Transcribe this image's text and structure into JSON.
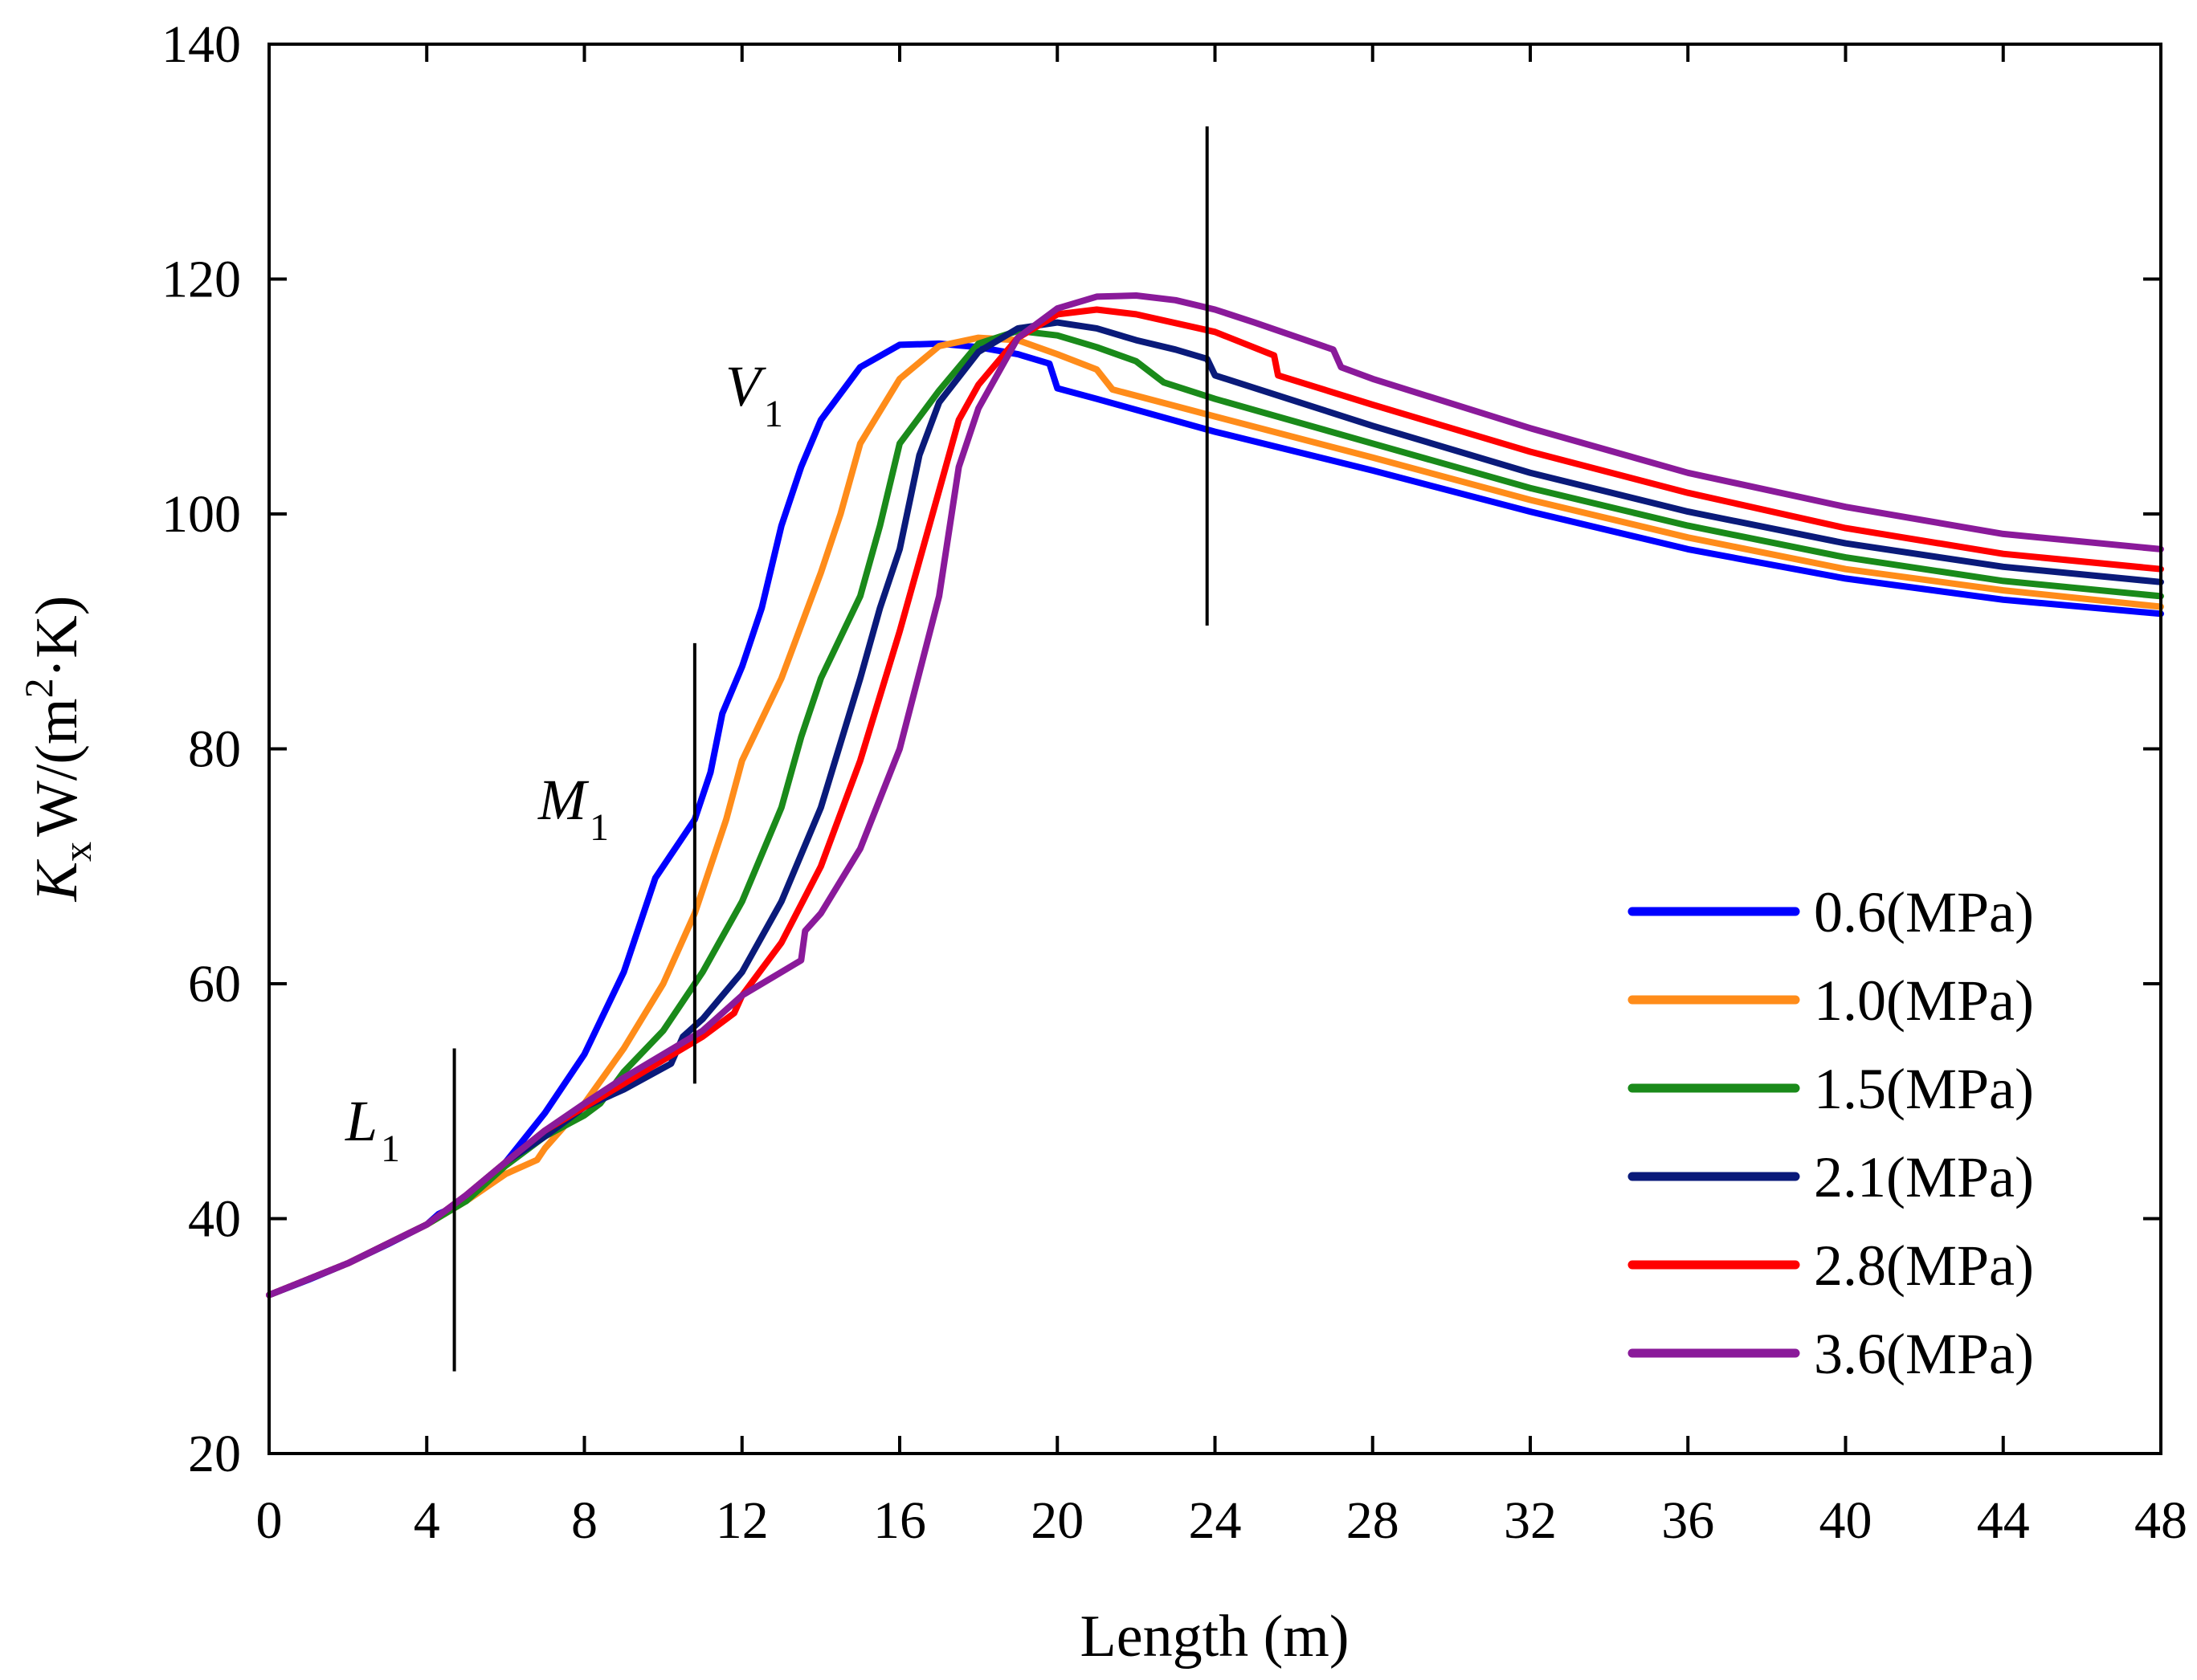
{
  "chart_data": {
    "type": "line",
    "title": "",
    "xlabel": "Length (m)",
    "ylabel": {
      "k": "K",
      "sub": "x",
      "unit": "W/(m",
      "sup": "2",
      "unit_end": "·K)"
    },
    "xlim": [
      0,
      48
    ],
    "ylim": [
      20,
      140
    ],
    "xticks": [
      0,
      4,
      8,
      12,
      16,
      20,
      24,
      28,
      32,
      36,
      40,
      44,
      48
    ],
    "yticks": [
      20,
      40,
      60,
      80,
      100,
      120,
      140
    ],
    "grid": false,
    "legend_position": "lower-right",
    "series": [
      {
        "name": "0.6(MPa)",
        "color": "#0000ff",
        "points": [
          [
            0,
            33.5
          ],
          [
            1,
            34.8
          ],
          [
            2,
            36.2
          ],
          [
            3,
            37.8
          ],
          [
            4,
            39.5
          ],
          [
            4.3,
            40.4
          ],
          [
            5,
            41.5
          ],
          [
            5.5,
            43
          ],
          [
            6,
            44.8
          ],
          [
            7,
            49
          ],
          [
            8,
            54
          ],
          [
            9,
            61
          ],
          [
            9.8,
            69
          ],
          [
            10.2,
            71
          ],
          [
            10.8,
            74
          ],
          [
            11.2,
            78
          ],
          [
            11.5,
            83
          ],
          [
            12,
            87
          ],
          [
            12.5,
            92
          ],
          [
            13,
            99
          ],
          [
            13.5,
            104
          ],
          [
            14,
            108
          ],
          [
            15,
            112.5
          ],
          [
            16,
            114.4
          ],
          [
            17,
            114.5
          ],
          [
            18,
            114.2
          ],
          [
            19,
            113.6
          ],
          [
            19.8,
            112.8
          ],
          [
            20,
            110.7
          ],
          [
            21,
            109.8
          ],
          [
            24,
            107
          ],
          [
            28,
            103.7
          ],
          [
            32,
            100.2
          ],
          [
            36,
            97
          ],
          [
            40,
            94.5
          ],
          [
            44,
            92.7
          ],
          [
            48,
            91.5
          ]
        ]
      },
      {
        "name": "1.0(MPa)",
        "color": "#ff8c1a",
        "points": [
          [
            0,
            33.5
          ],
          [
            2,
            36.2
          ],
          [
            4,
            39.5
          ],
          [
            5,
            41.5
          ],
          [
            6,
            43.8
          ],
          [
            6.8,
            45
          ],
          [
            7,
            46
          ],
          [
            8,
            49.8
          ],
          [
            9,
            54.5
          ],
          [
            10,
            60
          ],
          [
            10.8,
            66
          ],
          [
            11.2,
            70
          ],
          [
            11.6,
            74
          ],
          [
            12,
            79
          ],
          [
            13,
            86
          ],
          [
            14,
            95
          ],
          [
            14.5,
            100
          ],
          [
            15,
            106
          ],
          [
            16,
            111.5
          ],
          [
            17,
            114.3
          ],
          [
            18,
            115
          ],
          [
            19,
            114.8
          ],
          [
            20,
            113.6
          ],
          [
            21,
            112.3
          ],
          [
            21.4,
            110.6
          ],
          [
            24,
            108.3
          ],
          [
            28,
            104.8
          ],
          [
            32,
            101.2
          ],
          [
            36,
            98
          ],
          [
            40,
            95.3
          ],
          [
            44,
            93.5
          ],
          [
            48,
            92.1
          ]
        ]
      },
      {
        "name": "1.5(MPa)",
        "color": "#1a8a1a",
        "points": [
          [
            0,
            33.5
          ],
          [
            2,
            36.2
          ],
          [
            4,
            39.5
          ],
          [
            5,
            41.5
          ],
          [
            6,
            44.5
          ],
          [
            7,
            47
          ],
          [
            8,
            48.8
          ],
          [
            8.4,
            49.8
          ],
          [
            9,
            52.5
          ],
          [
            10,
            56
          ],
          [
            11,
            61
          ],
          [
            12,
            67
          ],
          [
            13,
            75
          ],
          [
            13.5,
            81
          ],
          [
            14,
            86
          ],
          [
            15,
            93
          ],
          [
            15.5,
            99
          ],
          [
            16,
            106
          ],
          [
            17,
            110.5
          ],
          [
            18,
            114.5
          ],
          [
            19,
            115.6
          ],
          [
            20,
            115.2
          ],
          [
            21,
            114.2
          ],
          [
            22,
            113
          ],
          [
            22.7,
            111.2
          ],
          [
            24,
            109.8
          ],
          [
            28,
            106
          ],
          [
            32,
            102.2
          ],
          [
            36,
            99
          ],
          [
            40,
            96.3
          ],
          [
            44,
            94.3
          ],
          [
            48,
            93
          ]
        ]
      },
      {
        "name": "2.1(MPa)",
        "color": "#0a1a7a",
        "points": [
          [
            0,
            33.5
          ],
          [
            2,
            36.2
          ],
          [
            4,
            39.5
          ],
          [
            5,
            42
          ],
          [
            6,
            44.8
          ],
          [
            7,
            47
          ],
          [
            8,
            49.5
          ],
          [
            9,
            51
          ],
          [
            10.2,
            53.2
          ],
          [
            10.5,
            55.5
          ],
          [
            11,
            57
          ],
          [
            12,
            61
          ],
          [
            13,
            67
          ],
          [
            14,
            75
          ],
          [
            15,
            86
          ],
          [
            15.5,
            92
          ],
          [
            16,
            97
          ],
          [
            16.5,
            105
          ],
          [
            17,
            109.5
          ],
          [
            18,
            113.8
          ],
          [
            19,
            115.8
          ],
          [
            20,
            116.3
          ],
          [
            21,
            115.8
          ],
          [
            22,
            114.8
          ],
          [
            23,
            114
          ],
          [
            23.8,
            113.2
          ],
          [
            24,
            111.8
          ],
          [
            28,
            107.5
          ],
          [
            32,
            103.5
          ],
          [
            36,
            100.2
          ],
          [
            40,
            97.5
          ],
          [
            44,
            95.5
          ],
          [
            48,
            94.2
          ]
        ]
      },
      {
        "name": "2.8(MPa)",
        "color": "#ff0000",
        "points": [
          [
            0,
            33.5
          ],
          [
            2,
            36.2
          ],
          [
            4,
            39.5
          ],
          [
            5,
            42
          ],
          [
            6,
            44.8
          ],
          [
            7,
            47.5
          ],
          [
            8,
            49.5
          ],
          [
            9,
            51.5
          ],
          [
            10,
            53.5
          ],
          [
            11,
            55.5
          ],
          [
            11.8,
            57.5
          ],
          [
            12,
            59
          ],
          [
            13,
            63.5
          ],
          [
            14,
            70
          ],
          [
            15,
            79
          ],
          [
            16,
            90
          ],
          [
            17,
            102
          ],
          [
            17.5,
            108
          ],
          [
            18,
            111
          ],
          [
            19,
            115
          ],
          [
            20,
            117
          ],
          [
            21,
            117.4
          ],
          [
            22,
            117
          ],
          [
            24,
            115.5
          ],
          [
            25.5,
            113.5
          ],
          [
            25.6,
            111.8
          ],
          [
            28,
            109.3
          ],
          [
            32,
            105.3
          ],
          [
            36,
            101.8
          ],
          [
            40,
            98.8
          ],
          [
            44,
            96.6
          ],
          [
            48,
            95.3
          ]
        ]
      },
      {
        "name": "3.6(MPa)",
        "color": "#8a1a9a",
        "points": [
          [
            0,
            33.5
          ],
          [
            2,
            36.2
          ],
          [
            4,
            39.5
          ],
          [
            5,
            42
          ],
          [
            6,
            44.8
          ],
          [
            7,
            47.5
          ],
          [
            8,
            49.8
          ],
          [
            9,
            52
          ],
          [
            10,
            54
          ],
          [
            11,
            56
          ],
          [
            12,
            59
          ],
          [
            13,
            61
          ],
          [
            13.5,
            62
          ],
          [
            13.6,
            64.5
          ],
          [
            14,
            66
          ],
          [
            15,
            71.5
          ],
          [
            16,
            80
          ],
          [
            17,
            93
          ],
          [
            17.5,
            104
          ],
          [
            18,
            109
          ],
          [
            19,
            115
          ],
          [
            20,
            117.5
          ],
          [
            21,
            118.5
          ],
          [
            22,
            118.6
          ],
          [
            23,
            118.2
          ],
          [
            24,
            117.4
          ],
          [
            25,
            116.3
          ],
          [
            27,
            114
          ],
          [
            27.2,
            112.5
          ],
          [
            28,
            111.5
          ],
          [
            32,
            107.3
          ],
          [
            36,
            103.5
          ],
          [
            40,
            100.6
          ],
          [
            44,
            98.3
          ],
          [
            48,
            97
          ]
        ]
      }
    ],
    "annotations": [
      {
        "label": "L",
        "sub": "1",
        "x": 4.7,
        "y_range": [
          27,
          54.5
        ]
      },
      {
        "label": "M",
        "sub": "1",
        "x": 10.8,
        "y_range": [
          51.5,
          89
        ]
      },
      {
        "label": "V",
        "sub": "1",
        "x": 23.8,
        "y_range": [
          90.5,
          133
        ]
      }
    ]
  }
}
